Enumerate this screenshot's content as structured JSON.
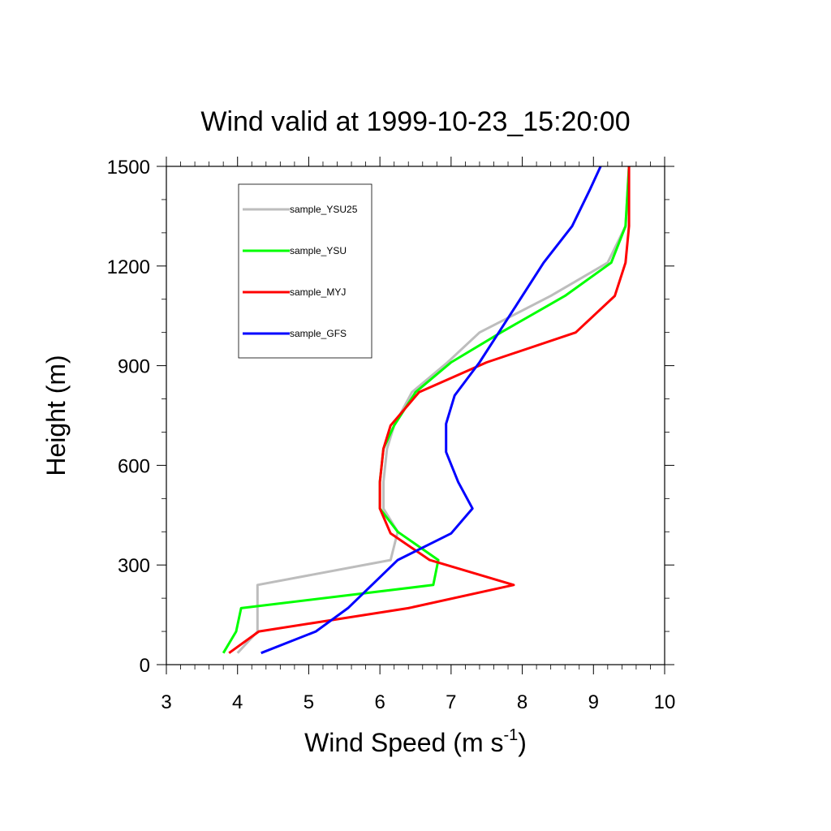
{
  "chart_data": {
    "type": "line",
    "title": "Wind valid at 1999-10-23_15:20:00",
    "xlabel": "Wind Speed (m s",
    "xlabel_superscript": "-1",
    "xlabel_close": ")",
    "ylabel": "Height (m)",
    "xlim": [
      3,
      10
    ],
    "ylim": [
      0,
      1500
    ],
    "x_ticks": [
      "3",
      "4",
      "5",
      "6",
      "7",
      "8",
      "9",
      "10"
    ],
    "y_ticks": [
      "0",
      "300",
      "600",
      "900",
      "1200",
      "1500"
    ],
    "legend_position": "top-left",
    "grid": false,
    "series": [
      {
        "name": "sample_YSU25",
        "color": "#bdbdbd",
        "points": [
          [
            4.0,
            35
          ],
          [
            4.28,
            100
          ],
          [
            4.28,
            240
          ],
          [
            6.15,
            315
          ],
          [
            6.25,
            400
          ],
          [
            6.05,
            470
          ],
          [
            6.05,
            550
          ],
          [
            6.1,
            650
          ],
          [
            6.2,
            720
          ],
          [
            6.45,
            820
          ],
          [
            6.95,
            910
          ],
          [
            7.4,
            1000
          ],
          [
            8.4,
            1110
          ],
          [
            9.2,
            1210
          ],
          [
            9.45,
            1320
          ],
          [
            9.5,
            1500
          ]
        ]
      },
      {
        "name": "sample_YSU",
        "color": "#00ff00",
        "points": [
          [
            3.8,
            35
          ],
          [
            3.98,
            100
          ],
          [
            4.05,
            170
          ],
          [
            6.75,
            240
          ],
          [
            6.82,
            315
          ],
          [
            6.25,
            400
          ],
          [
            6.0,
            470
          ],
          [
            6.0,
            550
          ],
          [
            6.05,
            650
          ],
          [
            6.2,
            720
          ],
          [
            6.5,
            820
          ],
          [
            7.0,
            910
          ],
          [
            7.7,
            1000
          ],
          [
            8.6,
            1110
          ],
          [
            9.25,
            1210
          ],
          [
            9.45,
            1320
          ],
          [
            9.5,
            1500
          ]
        ]
      },
      {
        "name": "sample_MYJ",
        "color": "#ff0000",
        "points": [
          [
            3.88,
            35
          ],
          [
            4.3,
            100
          ],
          [
            6.4,
            170
          ],
          [
            7.88,
            240
          ],
          [
            6.7,
            315
          ],
          [
            6.15,
            395
          ],
          [
            6.0,
            470
          ],
          [
            6.0,
            550
          ],
          [
            6.05,
            650
          ],
          [
            6.15,
            720
          ],
          [
            6.55,
            820
          ],
          [
            7.5,
            910
          ],
          [
            8.75,
            1000
          ],
          [
            9.3,
            1110
          ],
          [
            9.45,
            1210
          ],
          [
            9.5,
            1320
          ],
          [
            9.5,
            1500
          ]
        ]
      },
      {
        "name": "sample_GFS",
        "color": "#0000ff",
        "points": [
          [
            4.33,
            35
          ],
          [
            5.1,
            100
          ],
          [
            5.55,
            170
          ],
          [
            6.25,
            315
          ],
          [
            7.0,
            395
          ],
          [
            7.3,
            470
          ],
          [
            7.1,
            550
          ],
          [
            6.93,
            640
          ],
          [
            6.93,
            725
          ],
          [
            7.05,
            810
          ],
          [
            7.4,
            910
          ],
          [
            7.7,
            1010
          ],
          [
            8.3,
            1210
          ],
          [
            8.7,
            1320
          ],
          [
            8.95,
            1430
          ],
          [
            9.1,
            1500
          ]
        ]
      }
    ]
  }
}
